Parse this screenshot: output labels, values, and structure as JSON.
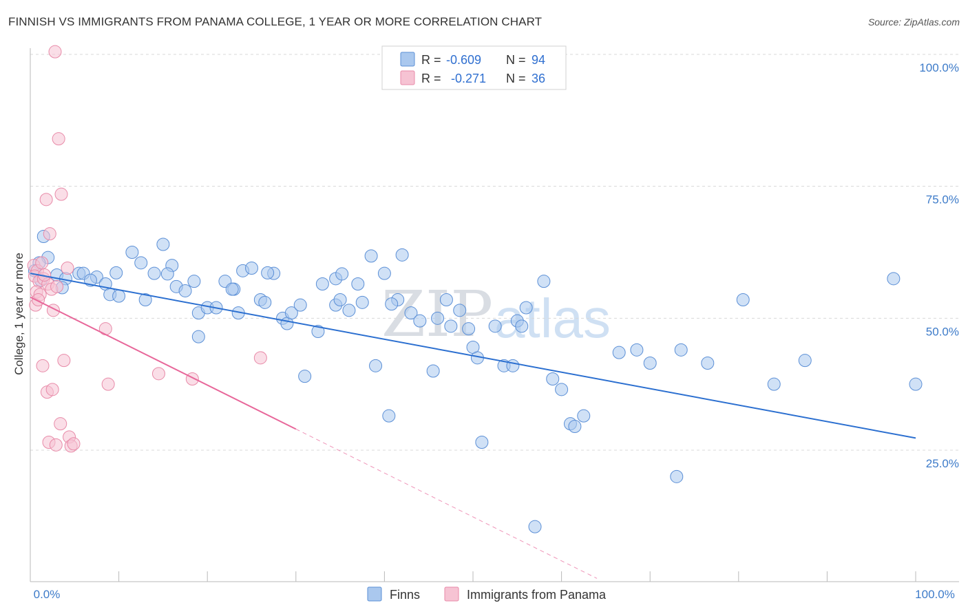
{
  "title": "FINNISH VS IMMIGRANTS FROM PANAMA COLLEGE, 1 YEAR OR MORE CORRELATION CHART",
  "source": "Source: ZipAtlas.com",
  "watermark": {
    "zip": "ZIP",
    "atlas": "atlas"
  },
  "colors": {
    "finns_fill": "#aac8ee",
    "finns_stroke": "#5b8fd6",
    "finns_line": "#2b6fd0",
    "panama_fill": "#f6c3d3",
    "panama_stroke": "#e88aa8",
    "panama_line": "#e8679a",
    "grid": "#d8d8d8",
    "tick_text": "#3d7bc9"
  },
  "chart_data": {
    "type": "scatter",
    "title": "FINNISH VS IMMIGRANTS FROM PANAMA COLLEGE, 1 YEAR OR MORE CORRELATION CHART",
    "xlabel": "",
    "ylabel": "College, 1 year or more",
    "xlim": [
      0,
      100
    ],
    "ylim": [
      0,
      102
    ],
    "x_tick_labels": [
      "0.0%",
      "100.0%"
    ],
    "y_tick_labels": [
      "100.0%",
      "75.0%",
      "50.0%",
      "25.0%"
    ],
    "y_ticks": [
      100,
      75,
      50,
      25
    ],
    "legend_position": "top-center",
    "legend": [
      {
        "r_label": "R =",
        "r_value": "-0.609",
        "n_label": "N =",
        "n_value": "94"
      },
      {
        "r_label": "R =",
        "r_value": "-0.271",
        "n_label": "N =",
        "n_value": "36"
      }
    ],
    "series": [
      {
        "name": "Finns",
        "trend": {
          "x0": 0,
          "y0": 58.5,
          "x1": 100,
          "y1": 27.3
        },
        "points": [
          [
            1.5,
            65.5
          ],
          [
            2.0,
            61.5
          ],
          [
            1.0,
            60.5
          ],
          [
            0.5,
            59.0
          ],
          [
            3.0,
            58.2
          ],
          [
            4.0,
            57.5
          ],
          [
            5.5,
            58.5
          ],
          [
            6.0,
            58.5
          ],
          [
            7.5,
            57.8
          ],
          [
            8.5,
            56.5
          ],
          [
            9.0,
            54.5
          ],
          [
            10.0,
            54.2
          ],
          [
            11.5,
            62.5
          ],
          [
            12.5,
            60.5
          ],
          [
            14.0,
            58.5
          ],
          [
            13.0,
            53.5
          ],
          [
            15.0,
            64.0
          ],
          [
            16.0,
            60.0
          ],
          [
            16.5,
            56.0
          ],
          [
            17.5,
            55.2
          ],
          [
            18.5,
            57.0
          ],
          [
            19.0,
            51.0
          ],
          [
            20.0,
            52.0
          ],
          [
            19.0,
            46.5
          ],
          [
            21.0,
            52.0
          ],
          [
            22.0,
            57.0
          ],
          [
            23.0,
            55.5
          ],
          [
            23.5,
            51.0
          ],
          [
            24.0,
            59.0
          ],
          [
            25.0,
            59.5
          ],
          [
            26.0,
            53.5
          ],
          [
            26.5,
            53.0
          ],
          [
            27.5,
            58.5
          ],
          [
            28.5,
            50.0
          ],
          [
            29.0,
            49.0
          ],
          [
            29.5,
            51.0
          ],
          [
            30.5,
            52.5
          ],
          [
            31.0,
            39.0
          ],
          [
            32.5,
            47.5
          ],
          [
            33.0,
            56.5
          ],
          [
            34.5,
            57.5
          ],
          [
            34.5,
            52.5
          ],
          [
            35.0,
            53.5
          ],
          [
            36.0,
            51.5
          ],
          [
            37.0,
            56.5
          ],
          [
            37.5,
            53.0
          ],
          [
            38.5,
            61.8
          ],
          [
            39.0,
            41.0
          ],
          [
            40.0,
            58.5
          ],
          [
            40.5,
            31.5
          ],
          [
            41.5,
            53.5
          ],
          [
            42.0,
            62.0
          ],
          [
            43.0,
            51.0
          ],
          [
            44.0,
            49.5
          ],
          [
            45.5,
            40.0
          ],
          [
            46.0,
            50.0
          ],
          [
            47.0,
            53.5
          ],
          [
            47.5,
            48.5
          ],
          [
            48.5,
            51.5
          ],
          [
            49.5,
            48.0
          ],
          [
            50.0,
            44.5
          ],
          [
            50.5,
            42.5
          ],
          [
            51.0,
            26.5
          ],
          [
            52.5,
            48.5
          ],
          [
            53.5,
            41.0
          ],
          [
            54.5,
            41.0
          ],
          [
            55.0,
            49.5
          ],
          [
            55.5,
            48.5
          ],
          [
            56.0,
            52.0
          ],
          [
            57.0,
            10.5
          ],
          [
            58.0,
            57.0
          ],
          [
            59.0,
            38.5
          ],
          [
            60.0,
            36.5
          ],
          [
            61.0,
            30.0
          ],
          [
            61.5,
            29.5
          ],
          [
            62.5,
            31.5
          ],
          [
            66.5,
            43.5
          ],
          [
            68.5,
            44.0
          ],
          [
            70.0,
            41.5
          ],
          [
            73.0,
            20.0
          ],
          [
            73.5,
            44.0
          ],
          [
            76.5,
            41.5
          ],
          [
            80.5,
            53.5
          ],
          [
            84.0,
            37.5
          ],
          [
            87.5,
            42.0
          ],
          [
            97.5,
            57.5
          ],
          [
            100.0,
            37.5
          ],
          [
            1.2,
            57.2
          ],
          [
            3.6,
            55.8
          ],
          [
            6.8,
            57.2
          ],
          [
            9.7,
            58.6
          ],
          [
            15.5,
            58.4
          ],
          [
            22.8,
            55.5
          ],
          [
            26.8,
            58.6
          ],
          [
            35.2,
            58.4
          ],
          [
            40.8,
            52.7
          ]
        ]
      },
      {
        "name": "Immigrants from Panama",
        "trend": {
          "x0": 0,
          "y0": 54.0,
          "x1": 30,
          "y1": 29.0,
          "dash_to_x": 64,
          "dash_to_y": 0.7
        },
        "points": [
          [
            2.8,
            100.5
          ],
          [
            3.2,
            84.0
          ],
          [
            3.5,
            73.5
          ],
          [
            1.8,
            72.5
          ],
          [
            2.2,
            66.0
          ],
          [
            0.4,
            60.0
          ],
          [
            0.8,
            59.0
          ],
          [
            1.3,
            60.5
          ],
          [
            0.5,
            58.0
          ],
          [
            1.0,
            57.0
          ],
          [
            1.5,
            57.5
          ],
          [
            2.0,
            56.5
          ],
          [
            0.7,
            55.0
          ],
          [
            1.1,
            54.5
          ],
          [
            2.4,
            55.5
          ],
          [
            3.0,
            56.0
          ],
          [
            0.6,
            52.5
          ],
          [
            2.6,
            51.5
          ],
          [
            4.2,
            59.5
          ],
          [
            0.9,
            53.5
          ],
          [
            1.4,
            41.0
          ],
          [
            3.8,
            42.0
          ],
          [
            1.9,
            36.0
          ],
          [
            2.5,
            36.5
          ],
          [
            8.5,
            48.0
          ],
          [
            8.8,
            37.5
          ],
          [
            14.5,
            39.5
          ],
          [
            18.3,
            38.5
          ],
          [
            26.0,
            42.5
          ],
          [
            3.4,
            30.0
          ],
          [
            2.1,
            26.5
          ],
          [
            2.9,
            26.0
          ],
          [
            4.4,
            27.5
          ],
          [
            4.6,
            25.8
          ],
          [
            4.9,
            26.2
          ],
          [
            1.6,
            58.2
          ]
        ]
      }
    ]
  },
  "bottom_legend": [
    {
      "label": "Finns"
    },
    {
      "label": "Immigrants from Panama"
    }
  ]
}
